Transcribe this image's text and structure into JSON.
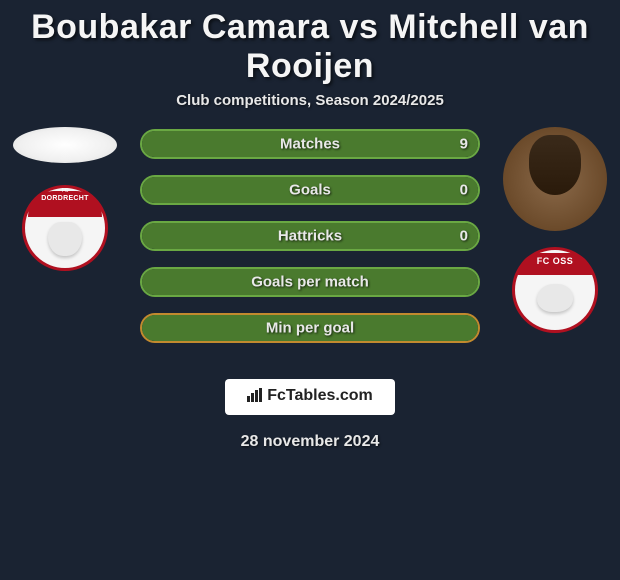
{
  "title": "Boubakar Camara vs Mitchell van Rooijen",
  "subtitle": "Club competitions, Season 2024/2025",
  "date": "28 november 2024",
  "branding": {
    "text": "FcTables.com"
  },
  "players": {
    "left": {
      "name": "Boubakar Camara",
      "club": "Dordrecht",
      "club_top_label": "FC",
      "club_label": "DORDRECHT"
    },
    "right": {
      "name": "Mitchell van Rooijen",
      "club": "FC Oss",
      "club_label": "FC OSS"
    }
  },
  "colors": {
    "background": "#1a2332",
    "text": "#e8e8e8",
    "bar_border_green": "#6aa843",
    "bar_fill_green": "#4a7a2e",
    "bar_border_orange": "#c28a2e",
    "logo_bg": "#ffffff",
    "logo_text": "#222222"
  },
  "stats": [
    {
      "label": "Matches",
      "left_value": null,
      "right_value": "9",
      "left_pct": 0,
      "right_pct": 100,
      "border_color": "#6aa843",
      "fill_color": "#4a7a2e"
    },
    {
      "label": "Goals",
      "left_value": null,
      "right_value": "0",
      "left_pct": 50,
      "right_pct": 50,
      "border_color": "#6aa843",
      "fill_color": "#4a7a2e"
    },
    {
      "label": "Hattricks",
      "left_value": null,
      "right_value": "0",
      "left_pct": 50,
      "right_pct": 50,
      "border_color": "#6aa843",
      "fill_color": "#4a7a2e"
    },
    {
      "label": "Goals per match",
      "left_value": null,
      "right_value": null,
      "left_pct": 50,
      "right_pct": 50,
      "border_color": "#6aa843",
      "fill_color": "#4a7a2e"
    },
    {
      "label": "Min per goal",
      "left_value": null,
      "right_value": null,
      "left_pct": 50,
      "right_pct": 50,
      "border_color": "#c28a2e",
      "fill_color": "#4a7a2e"
    }
  ]
}
